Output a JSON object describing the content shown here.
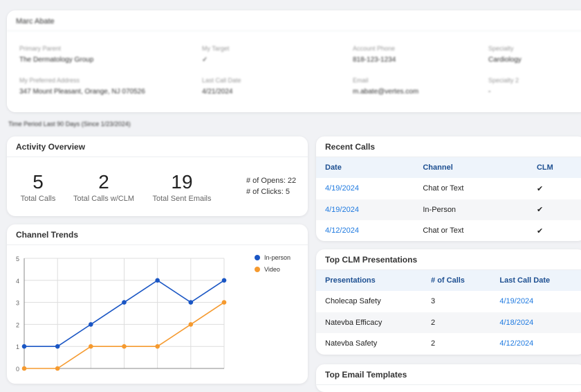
{
  "account": {
    "name": "Marc Abate",
    "fields": [
      {
        "label": "Primary Parent",
        "value": "The Dermatology Group"
      },
      {
        "label": "My Target",
        "value": "✓"
      },
      {
        "label": "Account Phone",
        "value": "818-123-1234"
      },
      {
        "label": "Specialty",
        "value": "Cardiology"
      },
      {
        "label": "My Preferred Address",
        "value": "347 Mount Pleasant, Orange, NJ 070526"
      },
      {
        "label": "Last Call Date",
        "value": "4/21/2024"
      },
      {
        "label": "Email",
        "value": "m.abate@vertes.com"
      },
      {
        "label": "Specialty 2",
        "value": "-"
      }
    ]
  },
  "time_period": "Time Period Last 90 Days (Since 1/23/2024)",
  "activity": {
    "title": "Activity Overview",
    "stats": [
      {
        "n": "5",
        "t": "Total Calls"
      },
      {
        "n": "2",
        "t": "Total Calls w/CLM"
      },
      {
        "n": "19",
        "t": "Total Sent Emails"
      }
    ],
    "opens": "# of Opens: 22",
    "clicks": "# of Clicks: 5"
  },
  "recent_calls": {
    "title": "Recent Calls",
    "headers": [
      "Date",
      "Channel",
      "CLM"
    ],
    "rows": [
      [
        "4/19/2024",
        "Chat or Text",
        "✔"
      ],
      [
        "4/19/2024",
        "In-Person",
        "✔"
      ],
      [
        "4/12/2024",
        "Chat or Text",
        "✔"
      ]
    ]
  },
  "clm": {
    "title": "Top CLM Presentations",
    "headers": [
      "Presentations",
      "# of Calls",
      "Last Call Date"
    ],
    "rows": [
      [
        "Cholecap Safety",
        "3",
        "4/19/2024"
      ],
      [
        "Natevba Efficacy",
        "2",
        "4/18/2024"
      ],
      [
        "Natevba Safety",
        "2",
        "4/12/2024"
      ]
    ]
  },
  "email": {
    "title": "Top Email Templates"
  },
  "chart_data": {
    "type": "line",
    "title": "Channel Trends",
    "ylim": [
      0,
      5
    ],
    "yticks": [
      "0",
      "1",
      "2",
      "3",
      "4",
      "5"
    ],
    "grid": true,
    "legend": "right",
    "series": [
      {
        "name": "In-person",
        "color": "#1a56c4",
        "values": [
          1,
          1,
          2,
          3,
          4,
          3,
          4
        ]
      },
      {
        "name": "Video",
        "color": "#f59a2f",
        "values": [
          0,
          0,
          1,
          1,
          1,
          2,
          3
        ]
      }
    ]
  }
}
